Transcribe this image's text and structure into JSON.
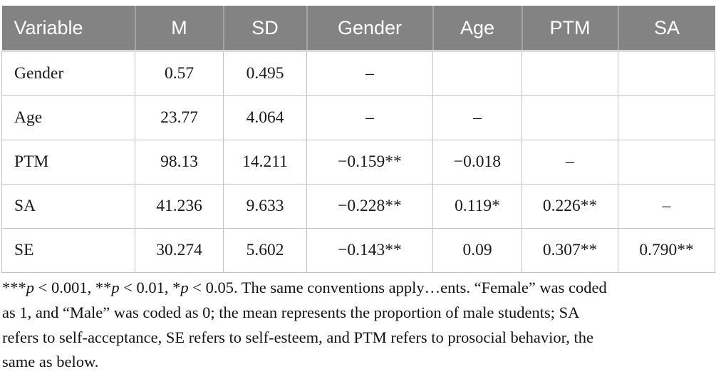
{
  "table": {
    "columns": [
      "Variable",
      "M",
      "SD",
      "Gender",
      "Age",
      "PTM",
      "SA"
    ],
    "rows": [
      {
        "cells": [
          "Gender",
          "0.57",
          "0.495",
          "–",
          "",
          "",
          ""
        ]
      },
      {
        "cells": [
          "Age",
          "23.77",
          "4.064",
          "–",
          "–",
          "",
          ""
        ]
      },
      {
        "cells": [
          "PTM",
          "98.13",
          "14.211",
          "−0.159**",
          "−0.018",
          "–",
          ""
        ]
      },
      {
        "cells": [
          "SA",
          "41.236",
          "9.633",
          "−0.228**",
          "0.119*",
          "0.226**",
          "–"
        ]
      },
      {
        "cells": [
          "SE",
          "30.274",
          "5.602",
          "−0.143**",
          "0.09",
          "0.307**",
          "0.790**"
        ]
      }
    ]
  },
  "footnote": {
    "lines": [
      {
        "segments": [
          {
            "text": "***"
          },
          {
            "text": "p",
            "italic": true
          },
          {
            "text": " < 0.001, **"
          },
          {
            "text": "p",
            "italic": true
          },
          {
            "text": " < 0.01, *"
          },
          {
            "text": "p",
            "italic": true
          },
          {
            "text": " < 0.05. The same conventions apply…ents. “Female” was coded"
          }
        ]
      },
      {
        "segments": [
          {
            "text": "as 1, and “Male” was coded as 0; the mean represents the proportion of male students; SA"
          }
        ]
      },
      {
        "segments": [
          {
            "text": "refers to self-acceptance, SE refers to self-esteem, and PTM refers to prosocial behavior, the"
          }
        ]
      },
      {
        "segments": [
          {
            "text": "same as below."
          }
        ]
      }
    ]
  },
  "colors": {
    "header_bg": "#838383",
    "header_text": "#ffffff",
    "body_border": "#c3c3c3",
    "header_divider": "#a5a5a5",
    "text": "#191919"
  }
}
